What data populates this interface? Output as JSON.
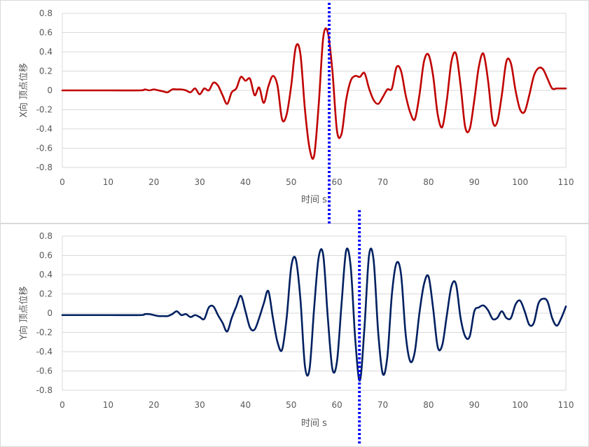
{
  "chart_data": [
    {
      "type": "line",
      "xlabel": "时间 s",
      "ylabel": "X向 顶点位移",
      "xlim": [
        0,
        110
      ],
      "ylim": [
        -0.8,
        0.8
      ],
      "xticks": [
        "0",
        "10",
        "20",
        "30",
        "40",
        "50",
        "60",
        "70",
        "80",
        "90",
        "100",
        "110"
      ],
      "yticks": [
        "0.8",
        "0.6",
        "0.4",
        "0.2",
        "0",
        "-0.2",
        "-0.4",
        "-0.6",
        "-0.8"
      ],
      "grid": "horizontal",
      "marker_line_x": 58.3,
      "marker_line_style": "dotted",
      "series": [
        {
          "color": "#c00000",
          "x": [
            0,
            10,
            17,
            18,
            19,
            20,
            21,
            22,
            23,
            24,
            25,
            26,
            27,
            28,
            29,
            30,
            31,
            32,
            33,
            34,
            35,
            36,
            37,
            38,
            39,
            40,
            41,
            42,
            43,
            44,
            45,
            46,
            47,
            48,
            49,
            50,
            51,
            52,
            53,
            54,
            55,
            56,
            57,
            58,
            59,
            60,
            61,
            62,
            63,
            64,
            65,
            66,
            67,
            68,
            69,
            70,
            71,
            72,
            73,
            74,
            75,
            76,
            77,
            78,
            79,
            80,
            81,
            82,
            83,
            84,
            85,
            86,
            87,
            88,
            89,
            90,
            91,
            92,
            93,
            94,
            95,
            96,
            97,
            98,
            99,
            100,
            101,
            102,
            103,
            104,
            105,
            106,
            107,
            108,
            109,
            110
          ],
          "y": [
            0,
            0,
            0,
            0.01,
            0,
            0.01,
            0,
            -0.01,
            -0.02,
            0.01,
            0.01,
            0.01,
            0,
            -0.02,
            0.02,
            -0.04,
            0.02,
            0,
            0.08,
            0.05,
            -0.05,
            -0.14,
            -0.02,
            0.02,
            0.14,
            0.1,
            0.12,
            -0.05,
            0.03,
            -0.13,
            0.04,
            0.15,
            0.05,
            -0.3,
            -0.25,
            0.05,
            0.45,
            0.38,
            -0.2,
            -0.6,
            -0.68,
            -0.15,
            0.55,
            0.6,
            0.2,
            -0.42,
            -0.45,
            -0.1,
            0.1,
            0.15,
            0.14,
            0.18,
            0.02,
            -0.1,
            -0.14,
            -0.07,
            0.01,
            0.02,
            0.24,
            0.2,
            -0.05,
            -0.23,
            -0.3,
            -0.05,
            0.3,
            0.37,
            0.15,
            -0.25,
            -0.38,
            -0.1,
            0.3,
            0.38,
            0.05,
            -0.38,
            -0.4,
            -0.1,
            0.25,
            0.38,
            0.1,
            -0.32,
            -0.33,
            -0.05,
            0.3,
            0.28,
            0,
            -0.2,
            -0.22,
            -0.05,
            0.15,
            0.23,
            0.22,
            0.12,
            0.02,
            0.02,
            0.02,
            0.02
          ]
        }
      ]
    },
    {
      "type": "line",
      "xlabel": "时间 s",
      "ylabel": "Y向 顶点位移",
      "xlim": [
        0,
        110
      ],
      "ylim": [
        -0.8,
        0.8
      ],
      "xticks": [
        "0",
        "10",
        "20",
        "30",
        "40",
        "50",
        "60",
        "70",
        "80",
        "90",
        "100",
        "110"
      ],
      "yticks": [
        "0.8",
        "0.6",
        "0.4",
        "0.2",
        "0",
        "-0.2",
        "-0.4",
        "-0.6",
        "-0.8"
      ],
      "grid": "horizontal",
      "marker_line_x": 64.9,
      "marker_line_style": "dotted",
      "series": [
        {
          "color": "#002060",
          "x": [
            0,
            10,
            17,
            18,
            19,
            20,
            21,
            22,
            23,
            24,
            25,
            26,
            27,
            28,
            29,
            30,
            31,
            32,
            33,
            34,
            35,
            36,
            37,
            38,
            39,
            40,
            41,
            42,
            43,
            44,
            45,
            46,
            47,
            48,
            49,
            50,
            51,
            52,
            53,
            54,
            55,
            56,
            57,
            58,
            59,
            60,
            61,
            62,
            63,
            64,
            65,
            66,
            67,
            68,
            69,
            70,
            71,
            72,
            73,
            74,
            75,
            76,
            77,
            78,
            79,
            80,
            81,
            82,
            83,
            84,
            85,
            86,
            87,
            88,
            89,
            90,
            91,
            92,
            93,
            94,
            95,
            96,
            97,
            98,
            99,
            100,
            101,
            102,
            103,
            104,
            105,
            106,
            107,
            108,
            109,
            110
          ],
          "y": [
            -0.02,
            -0.02,
            -0.02,
            -0.01,
            -0.01,
            -0.02,
            -0.03,
            -0.03,
            -0.03,
            -0.01,
            0.02,
            -0.02,
            -0.01,
            -0.04,
            -0.02,
            -0.04,
            -0.06,
            0.06,
            0.07,
            -0.02,
            -0.1,
            -0.19,
            -0.05,
            0.07,
            0.18,
            0.02,
            -0.15,
            -0.17,
            -0.05,
            0.1,
            0.23,
            -0.05,
            -0.3,
            -0.38,
            -0.05,
            0.48,
            0.56,
            0.15,
            -0.55,
            -0.58,
            0.05,
            0.58,
            0.6,
            -0.05,
            -0.58,
            -0.5,
            0.1,
            0.65,
            0.48,
            -0.28,
            -0.7,
            -0.15,
            0.6,
            0.55,
            -0.2,
            -0.63,
            -0.45,
            0.2,
            0.52,
            0.4,
            -0.22,
            -0.5,
            -0.4,
            0,
            0.3,
            0.38,
            0.05,
            -0.35,
            -0.33,
            -0.02,
            0.28,
            0.3,
            -0.05,
            -0.24,
            -0.24,
            0.02,
            0.06,
            0.08,
            0.03,
            -0.06,
            -0.05,
            0.02,
            -0.05,
            -0.05,
            0.09,
            0.13,
            0.02,
            -0.12,
            -0.1,
            0.1,
            0.15,
            0.12,
            -0.05,
            -0.13,
            -0.05,
            0.07
          ]
        }
      ]
    }
  ]
}
